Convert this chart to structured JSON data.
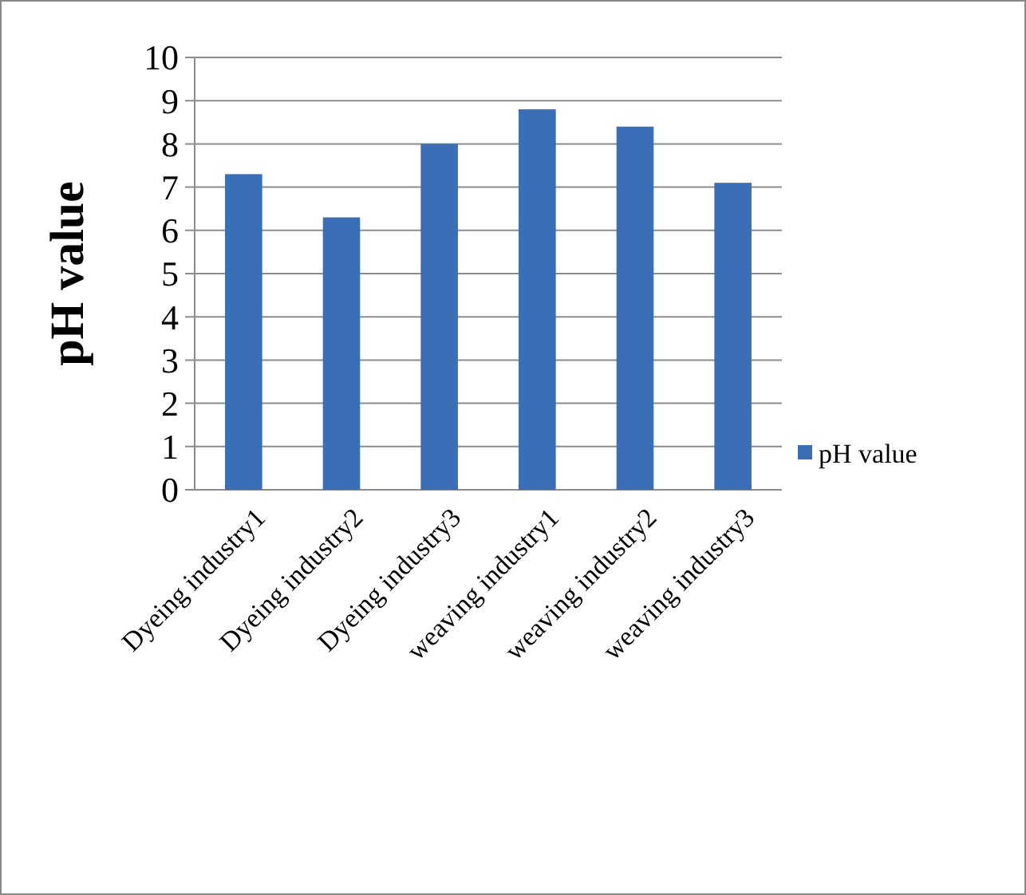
{
  "chart_data": {
    "type": "bar",
    "ylabel": "pH value",
    "categories": [
      "Dyeing industry1",
      "Dyeing industry2",
      "Dyeing industry3",
      "weaving industry1",
      "weaving industry2",
      "weaving industry3"
    ],
    "series": [
      {
        "name": "pH value",
        "color": "#3a6fb8",
        "values": [
          7.3,
          6.3,
          8.0,
          8.8,
          8.4,
          7.1
        ]
      }
    ],
    "ylim": [
      0,
      10
    ],
    "yticks": [
      0,
      1,
      2,
      3,
      4,
      5,
      6,
      7,
      8,
      9,
      10
    ],
    "grid": "y",
    "legend": "right"
  }
}
